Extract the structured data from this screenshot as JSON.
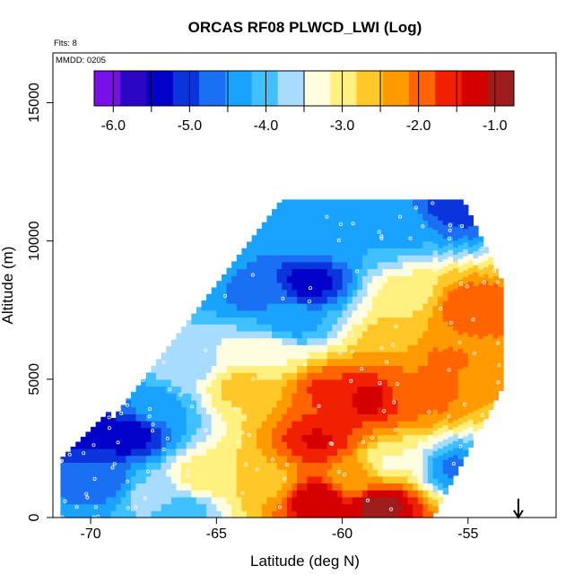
{
  "chart_data": {
    "type": "heatmap",
    "title": "ORCAS RF08 PLWCD_LWI (Log)",
    "annotations": {
      "flights": "Flts: 8",
      "date": "MMDD: 0205"
    },
    "xlabel": "Latitude (deg N)",
    "ylabel": "Altitude (m)",
    "xlim": [
      -71.5,
      -51.5
    ],
    "ylim": [
      0,
      16800
    ],
    "xticks": [
      -70,
      -65,
      -60,
      -55
    ],
    "xtick_labels": [
      "-70",
      "-65",
      "-60",
      "-55"
    ],
    "yticks": [
      0,
      5000,
      10000,
      15000
    ],
    "ytick_labels": [
      "0",
      "5000",
      "10000",
      "15000"
    ],
    "colorbar": {
      "min": -6.25,
      "max": -0.75,
      "ticks": [
        -6.0,
        -5.5,
        -5.0,
        -4.5,
        -4.0,
        -3.5,
        -3.0,
        -2.5,
        -2.0,
        -1.5,
        -1.0
      ],
      "tick_labels": [
        "-6.0",
        "-5.0",
        "-4.0",
        "-3.0",
        "-2.0",
        "-1.0"
      ],
      "tick_label_values": [
        -6.0,
        -5.0,
        -4.0,
        -3.0,
        -2.0,
        -1.0
      ],
      "colors": [
        "#7a10e8",
        "#2a06c4",
        "#0000c8",
        "#0a35dc",
        "#1b6ff2",
        "#1aa2ff",
        "#3fc0ff",
        "#a8dcff",
        "#fffde0",
        "#fff080",
        "#ffc828",
        "#ff9a00",
        "#ff6400",
        "#f02000",
        "#d50000",
        "#9e1c1c"
      ]
    },
    "grid": false,
    "legend": "none",
    "marker": {
      "label": "flight end",
      "lat": -53.0,
      "symbol": "down-arrow"
    },
    "field": {
      "lat_range": [
        -71.2,
        -53.7
      ],
      "alt_range": [
        0,
        11500
      ],
      "features": [
        {
          "lat": -70.0,
          "alt": 3200,
          "value": -5.4
        },
        {
          "lat": -68.5,
          "alt": 3000,
          "value": -5.5
        },
        {
          "lat": -69.5,
          "alt": 1200,
          "value": -4.7
        },
        {
          "lat": -67.5,
          "alt": 800,
          "value": -3.6
        },
        {
          "lat": -65.5,
          "alt": 1500,
          "value": -2.9
        },
        {
          "lat": -63.0,
          "alt": 1300,
          "value": -2.6
        },
        {
          "lat": -61.0,
          "alt": 700,
          "value": -1.1
        },
        {
          "lat": -58.5,
          "alt": 500,
          "value": -0.9
        },
        {
          "lat": -59.5,
          "alt": 1400,
          "value": -2.4
        },
        {
          "lat": -61.0,
          "alt": 2800,
          "value": -1.4
        },
        {
          "lat": -60.5,
          "alt": 4600,
          "value": -1.7
        },
        {
          "lat": -59.0,
          "alt": 4300,
          "value": -1.3
        },
        {
          "lat": -57.0,
          "alt": 4500,
          "value": -2.0
        },
        {
          "lat": -56.0,
          "alt": 5800,
          "value": -2.1
        },
        {
          "lat": -55.0,
          "alt": 7600,
          "value": -1.8
        },
        {
          "lat": -57.5,
          "alt": 8000,
          "value": -3.0
        },
        {
          "lat": -63.0,
          "alt": 6000,
          "value": -3.2
        },
        {
          "lat": -64.0,
          "alt": 4700,
          "value": -2.7
        },
        {
          "lat": -62.0,
          "alt": 7000,
          "value": -4.3
        },
        {
          "lat": -61.3,
          "alt": 8500,
          "value": -5.4
        },
        {
          "lat": -63.5,
          "alt": 8000,
          "value": -4.6
        },
        {
          "lat": -58.0,
          "alt": 10500,
          "value": -4.3
        },
        {
          "lat": -55.5,
          "alt": 11200,
          "value": -5.0
        },
        {
          "lat": -61.0,
          "alt": 10200,
          "value": -4.2
        },
        {
          "lat": -66.0,
          "alt": 5500,
          "value": -3.6
        },
        {
          "lat": -67.5,
          "alt": 4000,
          "value": -4.4
        },
        {
          "lat": -58.0,
          "alt": 2000,
          "value": -3.2
        },
        {
          "lat": -55.5,
          "alt": 1800,
          "value": -4.6
        },
        {
          "lat": -66.5,
          "alt": 300,
          "value": -4.1
        },
        {
          "lat": -57.5,
          "alt": 6500,
          "value": -2.5
        }
      ]
    }
  }
}
